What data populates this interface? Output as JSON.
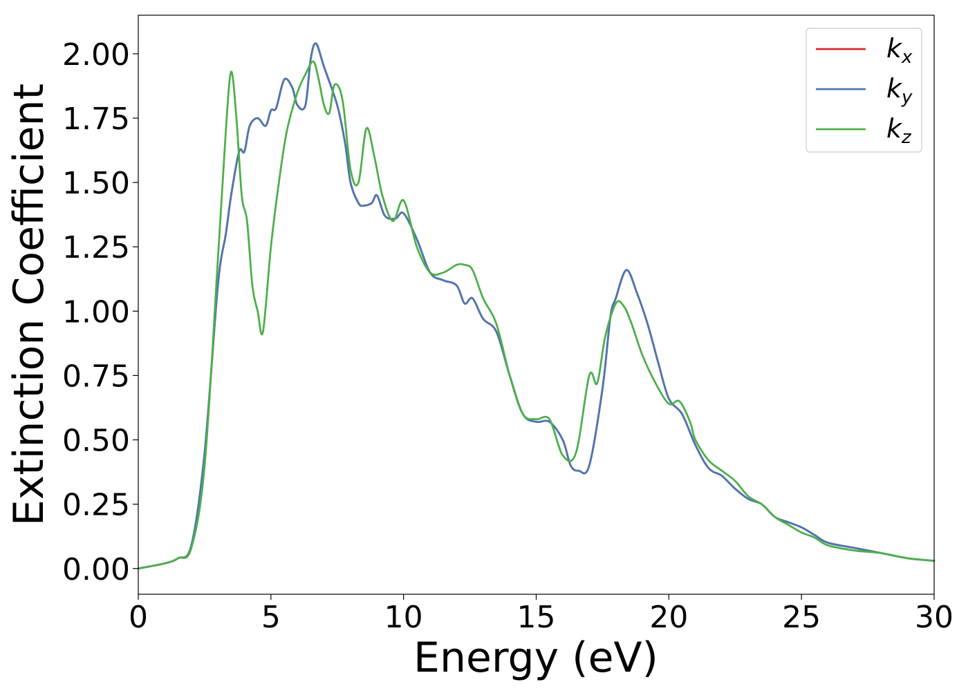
{
  "chart_data": {
    "type": "line",
    "xlabel": "Energy (eV)",
    "ylabel": "Extinction Coefficient",
    "xlim": [
      0,
      30
    ],
    "ylim": [
      -0.1,
      2.15
    ],
    "xticks": [
      0,
      5,
      10,
      15,
      20,
      25,
      30
    ],
    "yticks": [
      0.0,
      0.25,
      0.5,
      0.75,
      1.0,
      1.25,
      1.5,
      1.75,
      2.0
    ],
    "ytick_labels": [
      "0.00",
      "0.25",
      "0.50",
      "0.75",
      "1.00",
      "1.25",
      "1.50",
      "1.75",
      "2.00"
    ],
    "grid": false,
    "legend_position": "top-right",
    "series": [
      {
        "name": "k",
        "sub": "x",
        "color": "#d62728",
        "x": [
          0,
          1,
          1.5,
          2,
          2.5,
          3,
          3.3,
          3.5,
          3.8,
          4.0,
          4.2,
          4.5,
          4.8,
          5.0,
          5.2,
          5.5,
          5.8,
          6.0,
          6.3,
          6.5,
          6.7,
          7.0,
          7.5,
          7.8,
          8.0,
          8.3,
          8.5,
          8.8,
          9.0,
          9.3,
          9.7,
          10.0,
          10.5,
          11.0,
          11.5,
          12.0,
          12.3,
          12.6,
          13.0,
          13.5,
          14.0,
          14.5,
          15.0,
          15.5,
          16.0,
          16.3,
          16.6,
          17.0,
          17.5,
          17.8,
          18.0,
          18.4,
          18.8,
          19.2,
          19.6,
          20.0,
          20.5,
          21.0,
          21.5,
          22.0,
          22.5,
          23.0,
          23.5,
          24.0,
          24.5,
          25.0,
          25.5,
          26.0,
          27.0,
          28.0,
          29.0,
          30.0
        ],
        "values": [
          0.0,
          0.02,
          0.04,
          0.09,
          0.45,
          1.1,
          1.3,
          1.45,
          1.62,
          1.62,
          1.72,
          1.75,
          1.72,
          1.78,
          1.79,
          1.9,
          1.87,
          1.8,
          1.8,
          1.98,
          2.04,
          1.95,
          1.8,
          1.65,
          1.5,
          1.42,
          1.41,
          1.42,
          1.45,
          1.37,
          1.36,
          1.38,
          1.28,
          1.15,
          1.12,
          1.1,
          1.03,
          1.05,
          0.97,
          0.92,
          0.75,
          0.6,
          0.57,
          0.57,
          0.5,
          0.4,
          0.38,
          0.4,
          0.7,
          0.98,
          1.05,
          1.16,
          1.07,
          0.95,
          0.8,
          0.66,
          0.6,
          0.48,
          0.39,
          0.36,
          0.31,
          0.27,
          0.25,
          0.2,
          0.18,
          0.16,
          0.13,
          0.1,
          0.08,
          0.06,
          0.04,
          0.03
        ]
      },
      {
        "name": "k",
        "sub": "y",
        "color": "#4a77b4",
        "x": [
          0,
          1,
          1.5,
          2,
          2.5,
          3,
          3.3,
          3.5,
          3.8,
          4.0,
          4.2,
          4.5,
          4.8,
          5.0,
          5.2,
          5.5,
          5.8,
          6.0,
          6.3,
          6.5,
          6.7,
          7.0,
          7.5,
          7.8,
          8.0,
          8.3,
          8.5,
          8.8,
          9.0,
          9.3,
          9.7,
          10.0,
          10.5,
          11.0,
          11.5,
          12.0,
          12.3,
          12.6,
          13.0,
          13.5,
          14.0,
          14.5,
          15.0,
          15.5,
          16.0,
          16.3,
          16.6,
          17.0,
          17.5,
          17.8,
          18.0,
          18.4,
          18.8,
          19.2,
          19.6,
          20.0,
          20.5,
          21.0,
          21.5,
          22.0,
          22.5,
          23.0,
          23.5,
          24.0,
          24.5,
          25.0,
          25.5,
          26.0,
          27.0,
          28.0,
          29.0,
          30.0
        ],
        "values": [
          0.0,
          0.02,
          0.04,
          0.09,
          0.45,
          1.1,
          1.3,
          1.45,
          1.62,
          1.62,
          1.72,
          1.75,
          1.72,
          1.78,
          1.79,
          1.9,
          1.87,
          1.8,
          1.8,
          1.98,
          2.04,
          1.95,
          1.8,
          1.65,
          1.5,
          1.42,
          1.41,
          1.42,
          1.45,
          1.37,
          1.36,
          1.38,
          1.28,
          1.15,
          1.12,
          1.1,
          1.03,
          1.05,
          0.97,
          0.92,
          0.75,
          0.6,
          0.57,
          0.57,
          0.5,
          0.4,
          0.38,
          0.4,
          0.7,
          0.98,
          1.05,
          1.16,
          1.07,
          0.95,
          0.8,
          0.66,
          0.6,
          0.48,
          0.39,
          0.36,
          0.31,
          0.27,
          0.25,
          0.2,
          0.18,
          0.16,
          0.13,
          0.1,
          0.08,
          0.06,
          0.04,
          0.03
        ]
      },
      {
        "name": "k",
        "sub": "z",
        "color": "#4daf4a",
        "x": [
          0,
          1,
          1.5,
          2,
          2.5,
          3,
          3.3,
          3.5,
          3.7,
          3.9,
          4.1,
          4.3,
          4.5,
          4.7,
          5.0,
          5.3,
          5.6,
          6.0,
          6.3,
          6.6,
          6.8,
          7.0,
          7.2,
          7.4,
          7.7,
          8.0,
          8.3,
          8.6,
          8.9,
          9.2,
          9.6,
          10.0,
          10.5,
          11.0,
          11.5,
          12.0,
          12.3,
          12.6,
          13.0,
          13.5,
          14.0,
          14.5,
          15.0,
          15.5,
          16.0,
          16.5,
          17.0,
          17.3,
          17.6,
          18.0,
          18.3,
          18.6,
          19.0,
          19.5,
          20.0,
          20.4,
          20.8,
          21.0,
          21.5,
          22.0,
          22.5,
          23.0,
          23.5,
          24.0,
          24.5,
          25.0,
          25.5,
          26.0,
          27.0,
          28.0,
          29.0,
          30.0
        ],
        "values": [
          0.0,
          0.02,
          0.04,
          0.08,
          0.4,
          1.2,
          1.7,
          1.93,
          1.75,
          1.45,
          1.35,
          1.1,
          1.0,
          0.92,
          1.25,
          1.5,
          1.7,
          1.85,
          1.92,
          1.97,
          1.9,
          1.8,
          1.77,
          1.88,
          1.82,
          1.55,
          1.5,
          1.71,
          1.6,
          1.45,
          1.35,
          1.43,
          1.25,
          1.15,
          1.15,
          1.18,
          1.18,
          1.16,
          1.05,
          0.95,
          0.75,
          0.6,
          0.58,
          0.58,
          0.44,
          0.45,
          0.75,
          0.72,
          0.9,
          1.03,
          1.02,
          0.95,
          0.83,
          0.72,
          0.64,
          0.65,
          0.57,
          0.5,
          0.42,
          0.38,
          0.34,
          0.28,
          0.25,
          0.2,
          0.17,
          0.14,
          0.12,
          0.09,
          0.07,
          0.06,
          0.04,
          0.03
        ]
      }
    ]
  }
}
